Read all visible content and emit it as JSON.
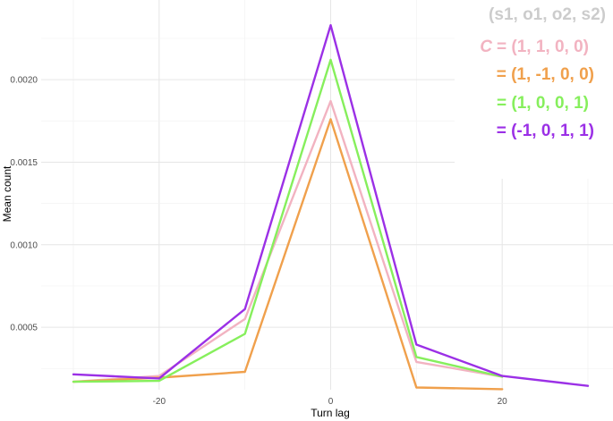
{
  "chart_data": {
    "type": "line",
    "title": "",
    "xlabel": "Turn lag",
    "ylabel": "Mean count",
    "xlim": [
      -30,
      30
    ],
    "ylim": [
      0.0001,
      0.00245
    ],
    "x_ticks": [
      -20,
      0,
      20
    ],
    "x_tick_labels": [
      "-20",
      "0",
      "20"
    ],
    "y_ticks": [
      0.0005,
      0.001,
      0.0015,
      0.002
    ],
    "y_tick_labels": [
      "0.0005",
      "0.0010",
      "0.0015",
      "0.0020"
    ],
    "grid": true,
    "legend_placement": "top-right",
    "legend_header": "(s1, o1, o2, s2)",
    "legend_prefix": "C",
    "series": [
      {
        "label": "= (1, 1, 0, 0)",
        "color": "#f2b3c1",
        "x": [
          -30,
          -20,
          -10,
          0,
          10,
          20
        ],
        "values": [
          0.00017,
          0.000205,
          0.00055,
          0.00187,
          0.00029,
          0.0002
        ]
      },
      {
        "label": "= (1, -1, 0, 0)",
        "color": "#f0a04c",
        "x": [
          -30,
          -20,
          -10,
          0,
          10,
          20
        ],
        "values": [
          0.00017,
          0.000195,
          0.00023,
          0.00176,
          0.000135,
          0.000125
        ]
      },
      {
        "label": "= (1, 0, 0, 1)",
        "color": "#86ef5c",
        "x": [
          -30,
          -20,
          -10,
          0,
          10,
          20
        ],
        "values": [
          0.00017,
          0.000175,
          0.00046,
          0.00212,
          0.00032,
          0.0002
        ]
      },
      {
        "label": "= (-1, 0, 1, 1)",
        "color": "#9b30e6",
        "x": [
          -30,
          -20,
          -10,
          0,
          10,
          20,
          30
        ],
        "values": [
          0.000215,
          0.00019,
          0.00061,
          0.00233,
          0.000395,
          0.000205,
          0.000145
        ]
      }
    ]
  }
}
